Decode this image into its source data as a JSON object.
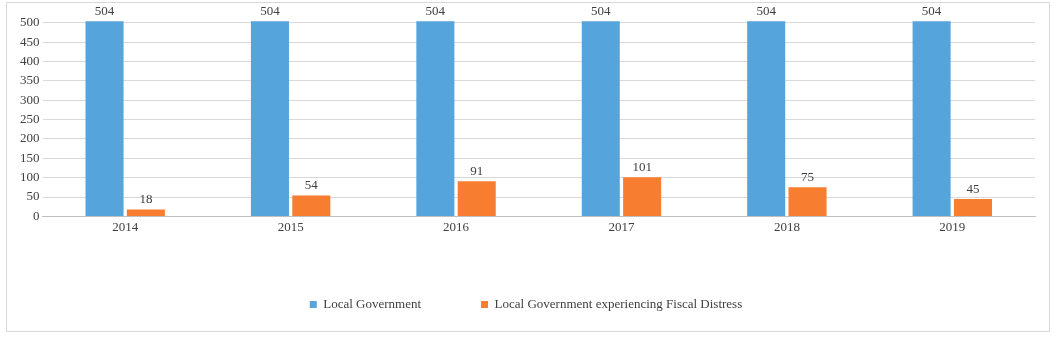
{
  "chart_data": {
    "type": "bar",
    "categories": [
      "2014",
      "2015",
      "2016",
      "2017",
      "2018",
      "2019"
    ],
    "series": [
      {
        "name": "Local Government",
        "color": "#55a4dc",
        "values": [
          504,
          504,
          504,
          504,
          504,
          504
        ]
      },
      {
        "name": "Local Government experiencing Fiscal Distress",
        "color": "#f77d31",
        "values": [
          18,
          54,
          91,
          101,
          75,
          45
        ]
      }
    ],
    "ylim": [
      0,
      510
    ],
    "yticks": [
      0,
      50,
      100,
      150,
      200,
      250,
      300,
      350,
      400,
      450,
      500
    ],
    "grid": "y",
    "legend": "bottom",
    "data_labels": true
  }
}
